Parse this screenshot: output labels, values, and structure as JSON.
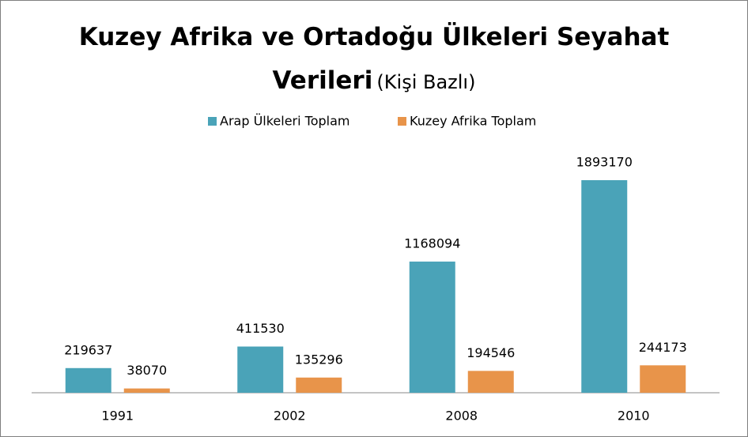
{
  "chart_data": {
    "type": "bar",
    "title": "Kuzey Afrika ve Ortadoğu Ülkeleri Seyahat Verileri",
    "subtitle": "(Kişi Bazlı)",
    "categories": [
      "1991",
      "2002",
      "2008",
      "2010"
    ],
    "series": [
      {
        "name": "Arap Ülkeleri Toplam",
        "color": "#4aa3b8",
        "values": [
          219637,
          411530,
          1168094,
          1893170
        ]
      },
      {
        "name": "Kuzey Afrika Toplam",
        "color": "#e8944a",
        "values": [
          38070,
          135296,
          194546,
          244173
        ]
      }
    ]
  }
}
